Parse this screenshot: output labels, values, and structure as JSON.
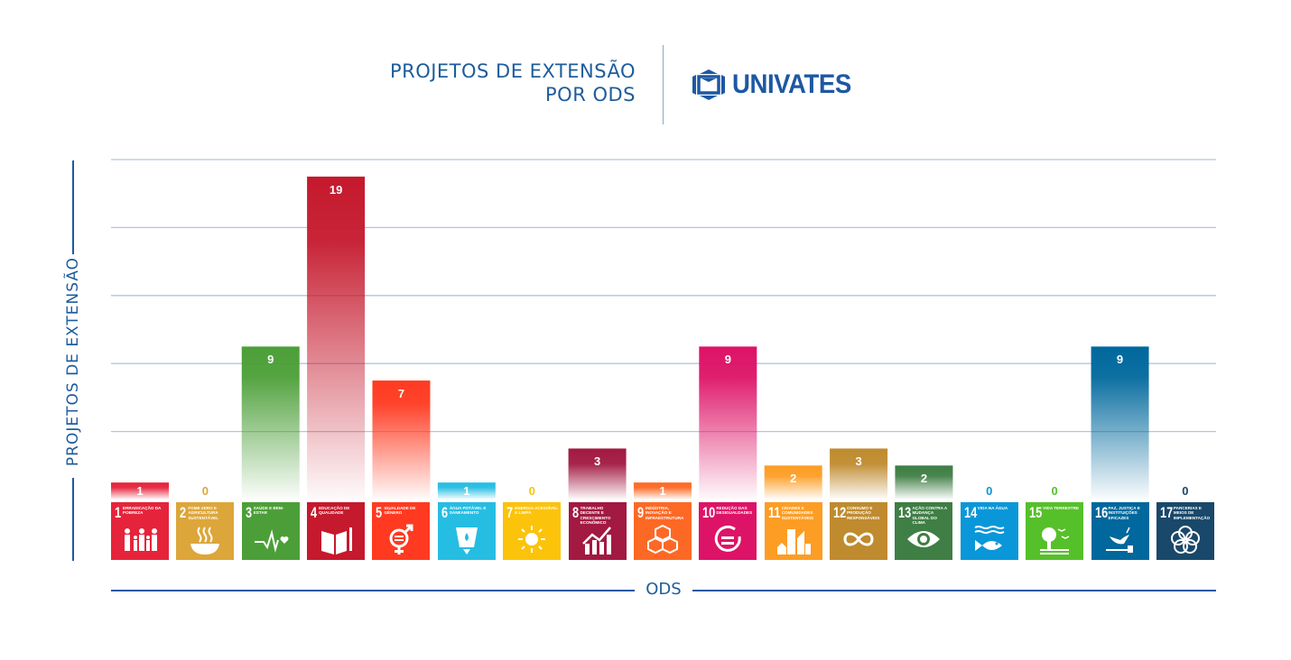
{
  "header": {
    "title_line1": "PROJETOS DE EXTENSÃO",
    "title_line2": "POR ODS",
    "logo_text": "UNIVATES",
    "brand_color": "#1d58a3"
  },
  "chart_data": {
    "type": "bar",
    "title": "PROJETOS DE EXTENSÃO POR ODS",
    "xlabel": "ODS",
    "ylabel": "PROJETOS DE EXTENSÃO",
    "ylim": [
      0,
      20
    ],
    "grid": true,
    "gridline_values": [
      4,
      8,
      12,
      16,
      20
    ],
    "categories": [
      "1",
      "2",
      "3",
      "4",
      "5",
      "6",
      "7",
      "8",
      "9",
      "10",
      "11",
      "12",
      "13",
      "14",
      "15",
      "16",
      "17"
    ],
    "values": [
      1,
      0,
      9,
      19,
      7,
      1,
      0,
      3,
      1,
      9,
      2,
      3,
      2,
      0,
      0,
      9,
      0
    ],
    "value_labels": [
      "1",
      "0",
      "9",
      "19",
      "7",
      "1",
      "0",
      "3",
      "1",
      "9",
      "2",
      "3",
      "2",
      "0",
      "0",
      "9",
      "0"
    ],
    "goals": [
      {
        "number": "1",
        "name": "ERRADICAÇÃO DA POBREZA",
        "color": "#e5243b",
        "icon": "family-icon"
      },
      {
        "number": "2",
        "name": "FOME ZERO E AGRICULTURA SUSTENTÁVEL",
        "color": "#dda63a",
        "icon": "bowl-icon"
      },
      {
        "number": "3",
        "name": "SAÚDE E BEM-ESTAR",
        "color": "#4c9f38",
        "icon": "heartbeat-icon"
      },
      {
        "number": "4",
        "name": "EDUCAÇÃO DE QUALIDADE",
        "color": "#c5192d",
        "icon": "book-icon"
      },
      {
        "number": "5",
        "name": "IGUALDADE DE GÊNERO",
        "color": "#ff3a21",
        "icon": "gender-icon"
      },
      {
        "number": "6",
        "name": "ÁGUA POTÁVEL E SANEAMENTO",
        "color": "#26bde2",
        "icon": "water-glass-icon"
      },
      {
        "number": "7",
        "name": "ENERGIA ACESSÍVEL E LIMPA",
        "color": "#fcc30b",
        "icon": "sun-power-icon"
      },
      {
        "number": "8",
        "name": "TRABALHO DECENTE E CRESCIMENTO ECONÔMICO",
        "color": "#a21942",
        "icon": "growth-chart-icon"
      },
      {
        "number": "9",
        "name": "INDÚSTRIA, INOVAÇÃO E INFRAESTRUTURA",
        "color": "#fd6925",
        "icon": "cubes-icon"
      },
      {
        "number": "10",
        "name": "REDUÇÃO DAS DESIGUALDADES",
        "color": "#dd1367",
        "icon": "equal-circle-icon"
      },
      {
        "number": "11",
        "name": "CIDADES E COMUNIDADES SUSTENTÁVEIS",
        "color": "#fd9d24",
        "icon": "city-icon"
      },
      {
        "number": "12",
        "name": "CONSUMO E PRODUÇÃO RESPONSÁVEIS",
        "color": "#bf8b2e",
        "icon": "infinity-icon"
      },
      {
        "number": "13",
        "name": "AÇÃO CONTRA A MUDANÇA GLOBAL DO CLIMA",
        "color": "#3f7e44",
        "icon": "eye-globe-icon"
      },
      {
        "number": "14",
        "name": "VIDA NA ÁGUA",
        "color": "#0a97d9",
        "icon": "fish-icon"
      },
      {
        "number": "15",
        "name": "VIDA TERRESTRE",
        "color": "#56c02b",
        "icon": "tree-icon"
      },
      {
        "number": "16",
        "name": "PAZ, JUSTIÇA E INSTITUIÇÕES EFICAZES",
        "color": "#00689d",
        "icon": "dove-gavel-icon"
      },
      {
        "number": "17",
        "name": "PARCERIAS E MEIOS DE IMPLEMENTAÇÃO",
        "color": "#19486a",
        "icon": "rings-icon"
      }
    ]
  }
}
